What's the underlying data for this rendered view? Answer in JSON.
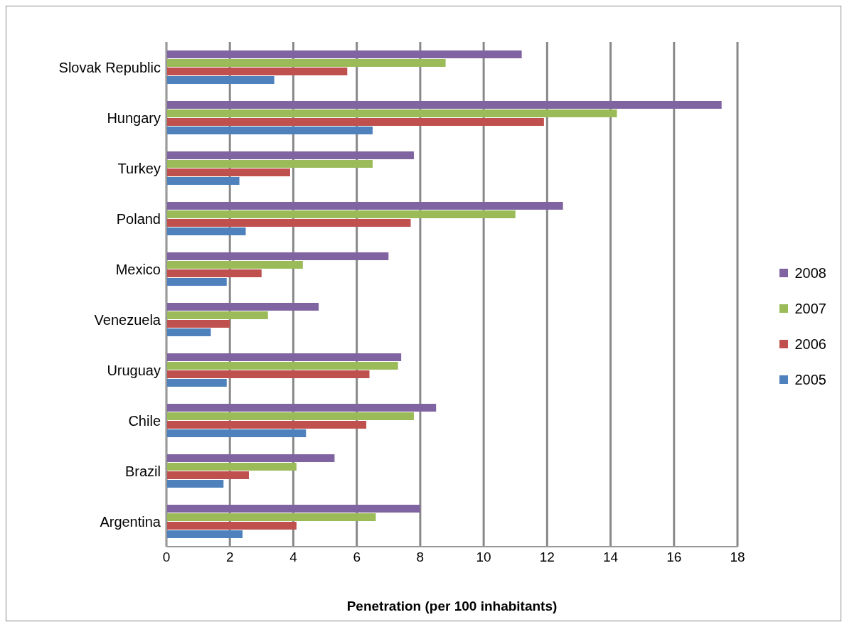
{
  "chart_data": {
    "type": "bar",
    "orientation": "horizontal",
    "xlabel": "Penetration (per 100 inhabitants)",
    "categories": [
      "Slovak Republic",
      "Hungary",
      "Turkey",
      "Poland",
      "Mexico",
      "Venezuela",
      "Uruguay",
      "Chile",
      "Brazil",
      "Argentina"
    ],
    "series": [
      {
        "name": "2008",
        "color": "#8064a2",
        "values": [
          11.2,
          17.5,
          7.8,
          12.5,
          7.0,
          4.8,
          7.4,
          8.5,
          5.3,
          8.0
        ]
      },
      {
        "name": "2007",
        "color": "#9bbb59",
        "values": [
          8.8,
          14.2,
          6.5,
          11.0,
          4.3,
          3.2,
          7.3,
          7.8,
          4.1,
          6.6
        ]
      },
      {
        "name": "2006",
        "color": "#c0504d",
        "values": [
          5.7,
          11.9,
          3.9,
          7.7,
          3.0,
          2.0,
          6.4,
          6.3,
          2.6,
          4.1
        ]
      },
      {
        "name": "2005",
        "color": "#4f81bd",
        "values": [
          3.4,
          6.5,
          2.3,
          2.5,
          1.9,
          1.4,
          1.9,
          4.4,
          1.8,
          2.4
        ]
      }
    ],
    "xlim": [
      0,
      18
    ],
    "xticks": [
      0,
      2,
      4,
      6,
      8,
      10,
      12,
      14,
      16,
      18
    ],
    "grid": "x",
    "legend": "right"
  }
}
